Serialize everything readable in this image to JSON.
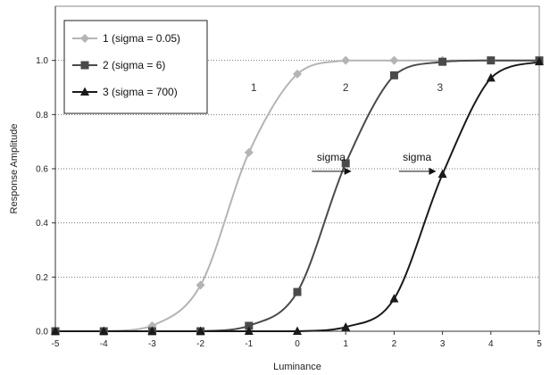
{
  "chart_data": {
    "type": "line",
    "title": "",
    "xlabel": "Luminance",
    "ylabel": "Response Amplitude",
    "xlim": [
      -5,
      5
    ],
    "ylim": [
      0,
      1.2
    ],
    "x_ticks": [
      "-5",
      "-4",
      "-3",
      "-2",
      "-1",
      "0",
      "1",
      "2",
      "3",
      "4",
      "5"
    ],
    "y_ticks": [
      "0.0",
      "0.2",
      "0.4",
      "0.6",
      "0.8",
      "1.0"
    ],
    "grid": "horizontal dotted",
    "legend_position": "top-left",
    "series": [
      {
        "name": "1 (sigma = 0.05)",
        "marker": "diamond",
        "color": "#b4b4b4",
        "x": [
          -5,
          -4,
          -3,
          -2,
          -1,
          0,
          1,
          2,
          3,
          4,
          5
        ],
        "y": [
          0,
          0,
          0.02,
          0.17,
          0.66,
          0.95,
          1.0,
          1.0,
          1.0,
          1.0,
          1.0
        ]
      },
      {
        "name": "2 (sigma = 6)",
        "marker": "square",
        "color": "#4a4a4a",
        "x": [
          -5,
          -4,
          -3,
          -2,
          -1,
          0,
          1,
          2,
          3,
          4,
          5
        ],
        "y": [
          0,
          0,
          0,
          0,
          0.02,
          0.145,
          0.62,
          0.945,
          0.995,
          1.0,
          1.0
        ]
      },
      {
        "name": "3 (sigma = 700)",
        "marker": "triangle",
        "color": "#1a1a1a",
        "x": [
          -5,
          -4,
          -3,
          -2,
          -1,
          0,
          1,
          2,
          3,
          4,
          5
        ],
        "y": [
          0,
          0,
          0,
          0,
          0,
          0,
          0.015,
          0.12,
          0.58,
          0.935,
          0.995
        ]
      }
    ],
    "annotations": [
      {
        "text": "sigma",
        "arrow_from": 0.3,
        "arrow_to": 1.1,
        "y": 0.65
      },
      {
        "text": "sigma",
        "arrow_from": 2.1,
        "arrow_to": 2.85,
        "y": 0.65
      }
    ],
    "curve_labels": [
      {
        "text": "1",
        "x": -0.9,
        "y": 0.96
      },
      {
        "text": "2",
        "x": 1.0,
        "y": 0.96
      },
      {
        "text": "3",
        "x": 2.95,
        "y": 0.96
      }
    ]
  }
}
